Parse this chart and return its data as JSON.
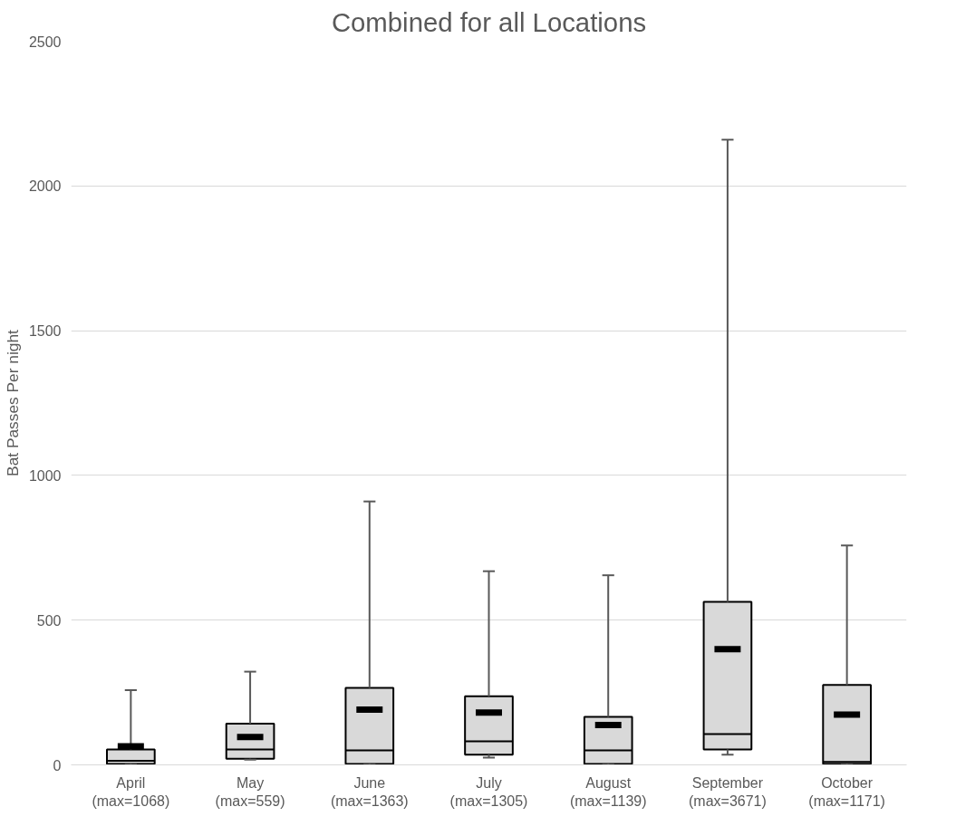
{
  "chart_data": {
    "type": "box",
    "title": "Combined for all Locations",
    "ylabel": "Bat Passes Per night",
    "categories": [
      "April\n(max=1068)",
      "May\n(max=559)",
      "June\n(max=1363)",
      "July\n(max=1305)",
      "August\n(max=1139)",
      "September\n(max=3671)",
      "October\n(max=1171)"
    ],
    "boxes": [
      {
        "low": 0,
        "q1": 3,
        "median": 14,
        "q3": 53,
        "high": 258,
        "mean": 64
      },
      {
        "low": 18,
        "q1": 21,
        "median": 53,
        "q3": 142,
        "high": 322,
        "mean": 96
      },
      {
        "low": 0,
        "q1": 3,
        "median": 50,
        "q3": 266,
        "high": 910,
        "mean": 191
      },
      {
        "low": 25,
        "q1": 35,
        "median": 81,
        "q3": 237,
        "high": 669,
        "mean": 181
      },
      {
        "low": 0,
        "q1": 3,
        "median": 50,
        "q3": 166,
        "high": 655,
        "mean": 138
      },
      {
        "low": 35,
        "q1": 53,
        "median": 106,
        "q3": 563,
        "high": 2160,
        "mean": 400
      },
      {
        "low": 0,
        "q1": 3,
        "median": 10,
        "q3": 276,
        "high": 758,
        "mean": 174
      }
    ],
    "color": "#d9d9d9",
    "ylim": [
      0,
      2500
    ],
    "yticks": [
      0,
      500,
      1000,
      1500,
      2000,
      2500
    ],
    "grid": "y"
  }
}
